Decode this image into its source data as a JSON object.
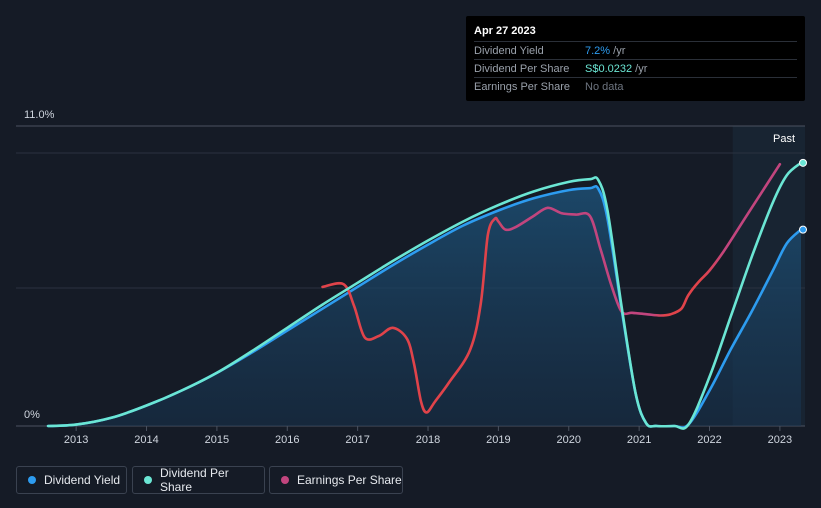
{
  "tooltip": {
    "date": "Apr 27 2023",
    "rows": [
      {
        "label": "Dividend Yield",
        "value": "7.2%",
        "unit": " /yr",
        "color": "#2d9cf0"
      },
      {
        "label": "Dividend Per Share",
        "value": "S$0.0232",
        "unit": " /yr",
        "color": "#6be6d4"
      },
      {
        "label": "Earnings Per Share",
        "value": "No data",
        "unit": "",
        "color": "#6e7580"
      }
    ]
  },
  "past_label": "Past",
  "legend": [
    {
      "label": "Dividend Yield",
      "color": "#2d9cf0"
    },
    {
      "label": "Dividend Per Share",
      "color": "#6be6d4"
    },
    {
      "label": "Earnings Per Share",
      "color": "#c2457e"
    }
  ],
  "chart_data": {
    "type": "line",
    "title": "",
    "xlabel": "",
    "ylabel": "",
    "x_ticks": [
      "2013",
      "2014",
      "2015",
      "2016",
      "2017",
      "2018",
      "2019",
      "2020",
      "2021",
      "2022",
      "2023"
    ],
    "y_ticks": [
      "0%",
      "11.0%"
    ],
    "ylim": [
      0,
      11.0
    ],
    "xlim": [
      2012.6,
      2023.3
    ],
    "grid": true,
    "legend_position": "bottom-left",
    "series": [
      {
        "name": "Dividend Yield",
        "color": "#2d9cf0",
        "fill": true,
        "x": [
          2012.6,
          2013.0,
          2013.5,
          2014.0,
          2014.5,
          2015.0,
          2015.5,
          2016.0,
          2016.5,
          2017.0,
          2017.5,
          2018.0,
          2018.5,
          2019.0,
          2019.5,
          2020.0,
          2020.3,
          2020.42,
          2020.55,
          2020.75,
          2020.95,
          2021.1,
          2021.25,
          2021.5,
          2021.7,
          2022.0,
          2022.3,
          2022.6,
          2022.9,
          2023.1,
          2023.3
        ],
        "y": [
          0.0,
          0.05,
          0.3,
          0.75,
          1.3,
          1.95,
          2.7,
          3.5,
          4.3,
          5.1,
          5.9,
          6.65,
          7.35,
          7.9,
          8.35,
          8.65,
          8.72,
          8.7,
          7.6,
          4.3,
          1.2,
          0.1,
          0.0,
          0.0,
          0.05,
          1.3,
          2.8,
          4.2,
          5.7,
          6.7,
          7.2
        ]
      },
      {
        "name": "Dividend Per Share",
        "color": "#6be6d4",
        "fill": false,
        "x": [
          2012.6,
          2013.0,
          2013.5,
          2014.0,
          2014.5,
          2015.0,
          2015.5,
          2016.0,
          2016.5,
          2017.0,
          2017.5,
          2018.0,
          2018.5,
          2019.0,
          2019.5,
          2020.0,
          2020.3,
          2020.42,
          2020.55,
          2020.75,
          2020.95,
          2021.1,
          2021.25,
          2021.5,
          2021.7,
          2022.0,
          2022.3,
          2022.6,
          2022.9,
          2023.1,
          2023.3
        ],
        "y": [
          0.0,
          0.05,
          0.3,
          0.75,
          1.3,
          1.95,
          2.75,
          3.6,
          4.45,
          5.25,
          6.05,
          6.8,
          7.5,
          8.1,
          8.6,
          8.95,
          9.05,
          9.02,
          7.9,
          4.4,
          1.2,
          0.1,
          0.0,
          0.0,
          0.05,
          1.8,
          4.0,
          6.2,
          8.2,
          9.2,
          9.65
        ]
      },
      {
        "name": "Earnings Per Share",
        "color": "#c2457e",
        "fill": false,
        "x": [
          2016.5,
          2016.8,
          2016.95,
          2017.1,
          2017.3,
          2017.5,
          2017.7,
          2017.8,
          2017.9,
          2017.98,
          2018.1,
          2018.3,
          2018.6,
          2018.75,
          2018.85,
          2018.95,
          2019.0,
          2019.1,
          2019.25,
          2019.5,
          2019.7,
          2019.9,
          2020.1,
          2020.3,
          2020.45,
          2020.6,
          2020.75,
          2020.9,
          2021.1,
          2021.3,
          2021.45,
          2021.6,
          2021.7,
          2021.85,
          2022.0,
          2022.2,
          2022.5,
          2022.8,
          2023.0
        ],
        "y": [
          5.1,
          5.2,
          4.4,
          3.25,
          3.3,
          3.6,
          3.2,
          2.3,
          0.9,
          0.5,
          0.9,
          1.6,
          2.8,
          4.5,
          7.0,
          7.6,
          7.5,
          7.2,
          7.3,
          7.7,
          8.0,
          7.8,
          7.75,
          7.7,
          6.5,
          5.2,
          4.2,
          4.15,
          4.1,
          4.05,
          4.1,
          4.3,
          4.8,
          5.3,
          5.7,
          6.4,
          7.6,
          8.8,
          9.6
        ]
      }
    ]
  }
}
